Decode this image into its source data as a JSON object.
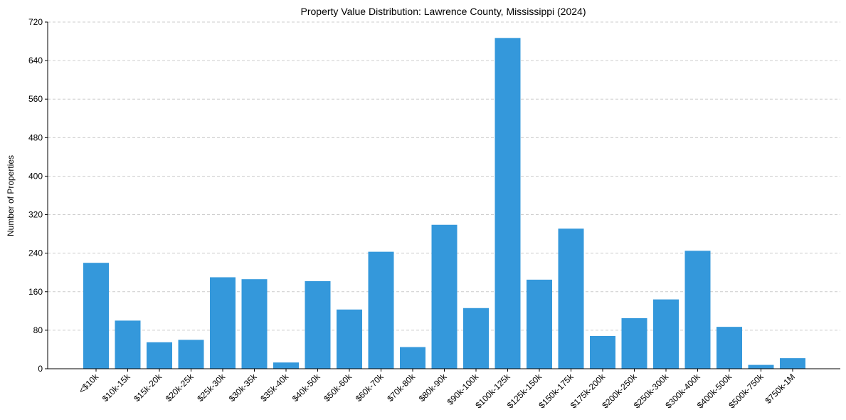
{
  "chart_data": {
    "type": "bar",
    "title": "Property Value Distribution: Lawrence County, Mississippi (2024)",
    "xlabel": "",
    "ylabel": "Number of Properties",
    "ylim": [
      0,
      720
    ],
    "yticks": [
      0,
      80,
      160,
      240,
      320,
      400,
      480,
      560,
      640,
      720
    ],
    "grid": "y-dashed",
    "bar_color": "#3498db",
    "categories": [
      "<$10k",
      "$10k-15k",
      "$15k-20k",
      "$20k-25k",
      "$25k-30k",
      "$30k-35k",
      "$35k-40k",
      "$40k-50k",
      "$50k-60k",
      "$60k-70k",
      "$70k-80k",
      "$80k-90k",
      "$90k-100k",
      "$100k-125k",
      "$125k-150k",
      "$150k-175k",
      "$175k-200k",
      "$200k-250k",
      "$250k-300k",
      "$300k-400k",
      "$400k-500k",
      "$500k-750k",
      "$750k-1M"
    ],
    "values": [
      220,
      100,
      55,
      60,
      190,
      186,
      13,
      182,
      123,
      243,
      45,
      299,
      126,
      687,
      185,
      291,
      68,
      105,
      144,
      245,
      87,
      8,
      22
    ]
  }
}
